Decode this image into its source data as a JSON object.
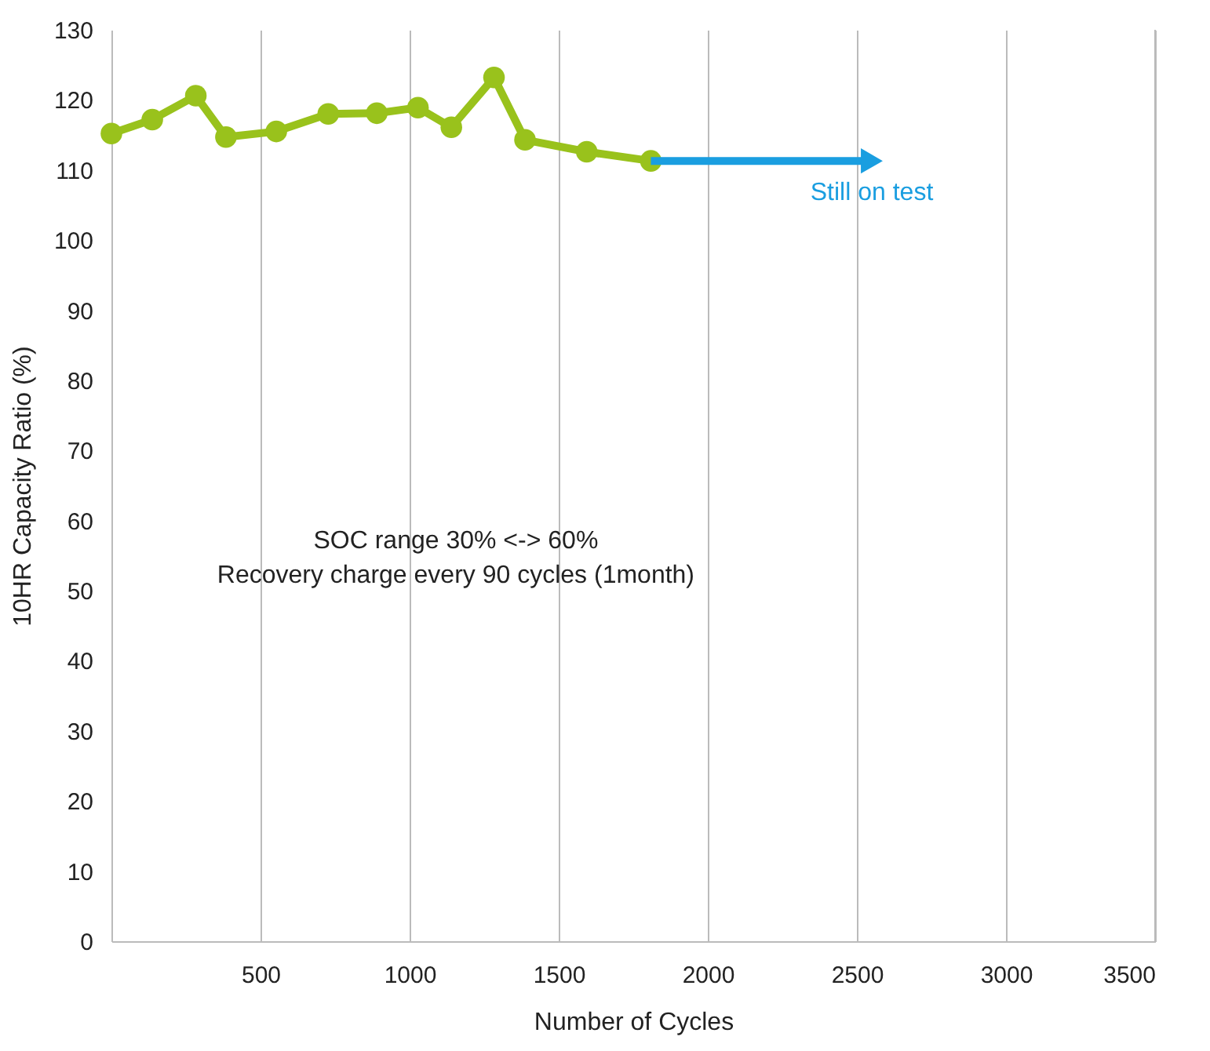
{
  "chart_data": {
    "type": "line",
    "xlabel": "Number of Cycles",
    "ylabel": "10HR Capacity Ratio (%)",
    "xlim": [
      0,
      3500
    ],
    "xticks": [
      {
        "value": 0,
        "label": null
      },
      500,
      1000,
      1500,
      2000,
      2500,
      3000,
      3500
    ],
    "ylim": [
      0,
      130
    ],
    "yticks": [
      0,
      10,
      20,
      30,
      40,
      50,
      60,
      70,
      80,
      90,
      100,
      110,
      120,
      130
    ],
    "grid": "x",
    "marker": "circle",
    "line_style": "solid",
    "series": [
      {
        "color": "#99c21c",
        "x": [
          0,
          137,
          283,
          384,
          553,
          727,
          890,
          1028,
          1140,
          1283,
          1387,
          1594,
          1809
        ],
        "values": [
          115.2,
          117.2,
          120.6,
          114.7,
          115.5,
          118.0,
          118.1,
          118.9,
          116.1,
          123.2,
          114.3,
          112.6,
          111.3
        ]
      }
    ],
    "annotations": [
      {
        "text": "Still on test",
        "x": 2550,
        "y": 111.3
      },
      "SOC range 30% <-> 60%",
      "Recovery charge every 90 cycles (1month)"
    ]
  }
}
